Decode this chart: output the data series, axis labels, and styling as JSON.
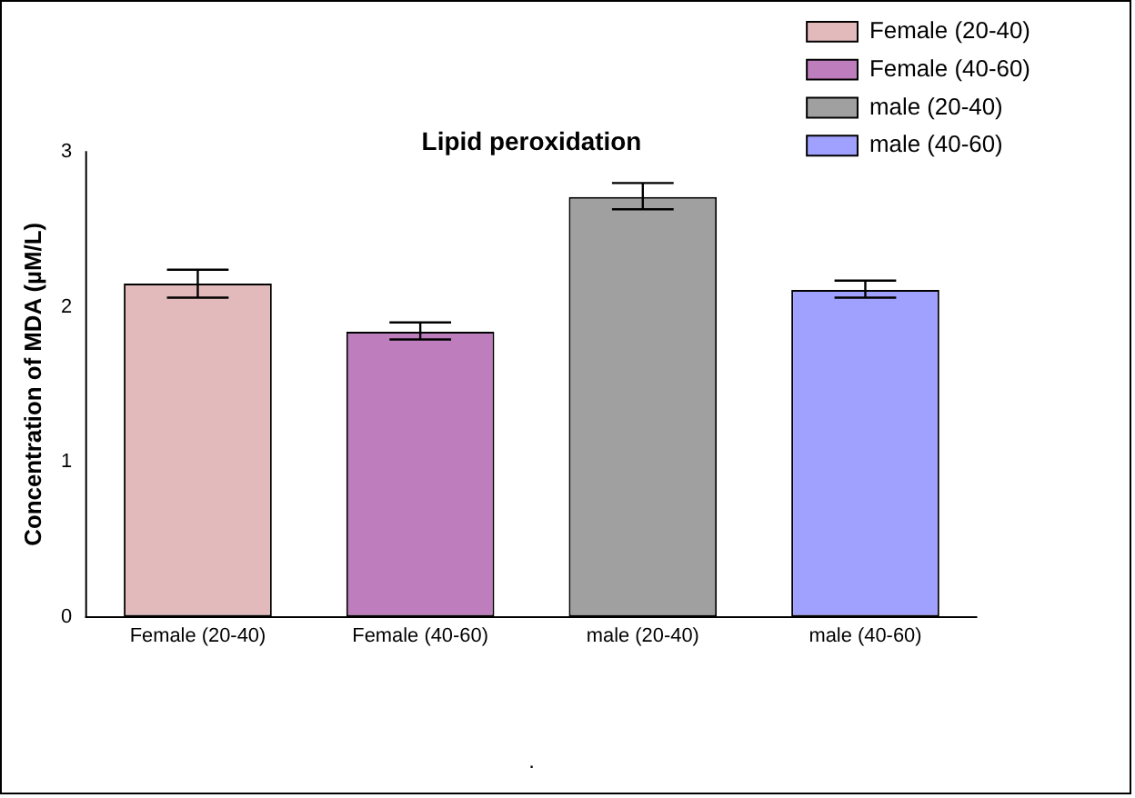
{
  "chart_data": {
    "type": "bar",
    "title": "Lipid peroxidation",
    "ylabel": "Concentration of MDA (µM/L)",
    "categories": [
      "Female (20-40)",
      "Female (40-60)",
      "male (20-40)",
      "male (40-60)"
    ],
    "series": [
      {
        "name": "Female (20-40)",
        "color": "#e3babb",
        "values": [
          2.15,
          null,
          null,
          null
        ],
        "errors": [
          [
            2.06,
            2.24
          ],
          null,
          null,
          null
        ]
      },
      {
        "name": "Female (40-60)",
        "color": "#be7dbc",
        "values": [
          null,
          1.84,
          null,
          null
        ],
        "errors": [
          null,
          [
            1.79,
            1.9
          ],
          null,
          null
        ]
      },
      {
        "name": "male (20-40)",
        "color": "#a0a0a0",
        "values": [
          null,
          null,
          2.71,
          null
        ],
        "errors": [
          null,
          null,
          [
            2.63,
            2.8
          ],
          null
        ]
      },
      {
        "name": "male (40-60)",
        "color": "#a0a0fe",
        "values": [
          null,
          null,
          null,
          2.11
        ],
        "errors": [
          null,
          null,
          null,
          [
            2.06,
            2.17
          ]
        ]
      }
    ],
    "ylim": [
      0,
      3
    ],
    "yticks": [
      0,
      1,
      2,
      3
    ],
    "grid": false,
    "legend": "top right",
    "annotations": [
      "."
    ]
  }
}
